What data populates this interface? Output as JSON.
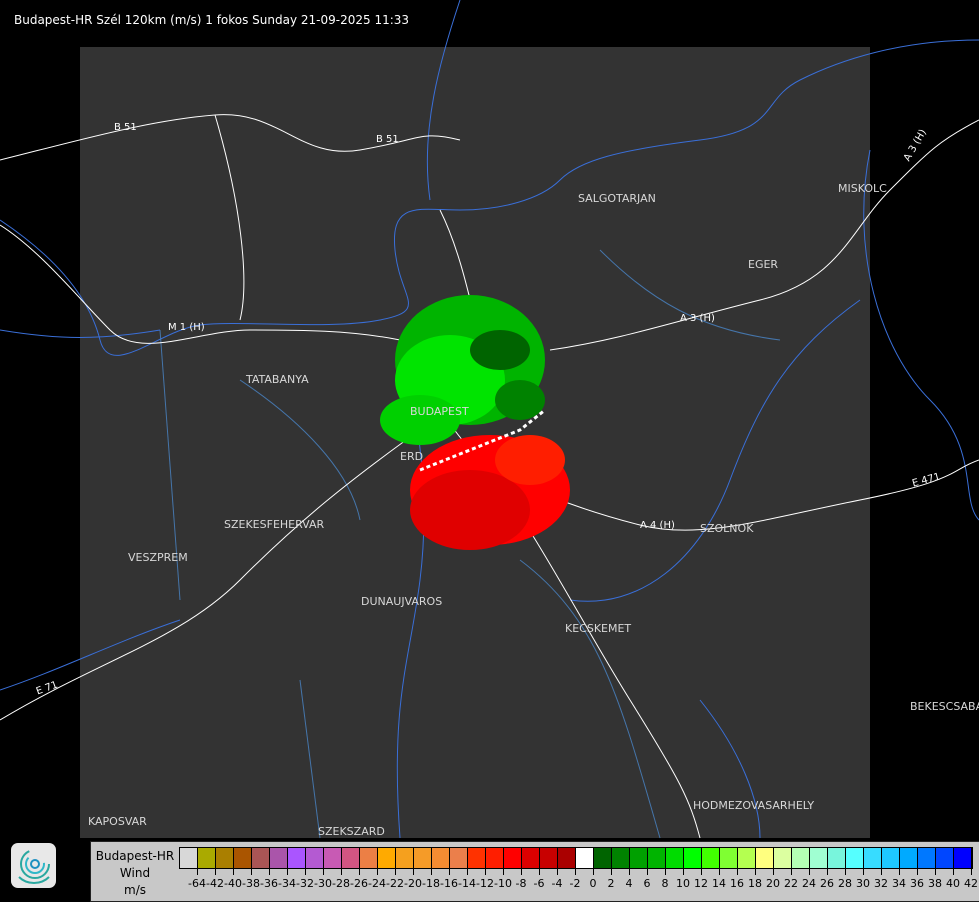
{
  "title": "Budapest-HR Szél 120km (m/s) 1 fokos Sunday 21-09-2025 11:33",
  "cities": [
    "SALGOTARJAN",
    "EGER",
    "MISKOLC",
    "TATABANYA",
    "BUDAPEST",
    "ERD",
    "SZEKESFEHERVAR",
    "VESZPREM",
    "DUNAUJVAROS",
    "KECSKEMET",
    "SZOLNOK",
    "BEKESCSABA",
    "HODMEZOVASARHELY",
    "KAPOSVAR",
    "SZEKSZARD"
  ],
  "roads": [
    "B 51",
    "B 51",
    "A 3 (H)",
    "A 3 (H)",
    "M 1 (H)",
    "A 4 (H)",
    "E 71",
    "E 471"
  ],
  "legend": {
    "station": "Budapest-HR",
    "quantity": "Wind",
    "unit": "m/s",
    "ticks": [
      "-64",
      "-42",
      "-40",
      "-38",
      "-36",
      "-34",
      "-32",
      "-30",
      "-28",
      "-26",
      "-24",
      "-22",
      "-20",
      "-18",
      "-16",
      "-14",
      "-12",
      "-10",
      "-8",
      "-6",
      "-4",
      "-2",
      "0",
      "2",
      "4",
      "6",
      "8",
      "10",
      "12",
      "14",
      "16",
      "18",
      "20",
      "22",
      "24",
      "26",
      "28",
      "30",
      "32",
      "34",
      "36",
      "38",
      "40",
      "42"
    ],
    "colors": [
      "#d8d8d8",
      "#aaaa00",
      "#aa7f00",
      "#aa5500",
      "#aa5555",
      "#aa55aa",
      "#aa55ff",
      "#b45ad2",
      "#c85ab4",
      "#d25582",
      "#ec7f45",
      "#ffaa00",
      "#f5a01e",
      "#f59b28",
      "#f58c32",
      "#eb7f4b",
      "#ff3200",
      "#ff1e00",
      "#ff0000",
      "#dc0000",
      "#c80000",
      "#aa0000",
      "#ffffff",
      "#006400",
      "#008200",
      "#00a000",
      "#00b400",
      "#00dc00",
      "#00ff00",
      "#41ff00",
      "#7fff32",
      "#b4ff50",
      "#ffff7f",
      "#dcffa0",
      "#b4ffb4",
      "#a0ffd2",
      "#78f5dc",
      "#55ffff",
      "#37dcff",
      "#1ec8ff",
      "#00aaff",
      "#0078ff",
      "#0046ff",
      "#0000ff"
    ]
  }
}
